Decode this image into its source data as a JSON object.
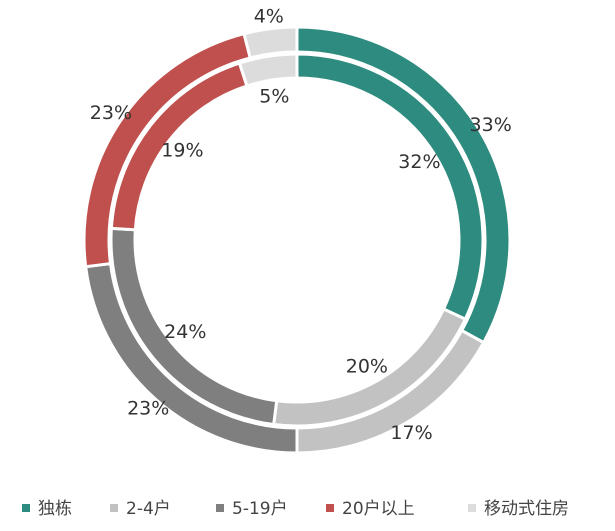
{
  "chart_data": {
    "type": "donut",
    "categories": [
      "独栋",
      "2-4户",
      "5-19户",
      "20户以上",
      "移动式住房"
    ],
    "colors": [
      "#2e8b7f",
      "#c2c2c2",
      "#7f7f7f",
      "#c0504d",
      "#dcdcdc"
    ],
    "rings": [
      {
        "values": [
          33,
          17,
          23,
          23,
          4
        ],
        "value_labels": [
          "33%",
          "17%",
          "23%",
          "23%",
          "4%"
        ]
      },
      {
        "values": [
          32,
          20,
          24,
          19,
          5
        ],
        "value_labels": [
          "32%",
          "20%",
          "24%",
          "19%",
          "5%"
        ]
      }
    ],
    "legend": "bottom"
  }
}
